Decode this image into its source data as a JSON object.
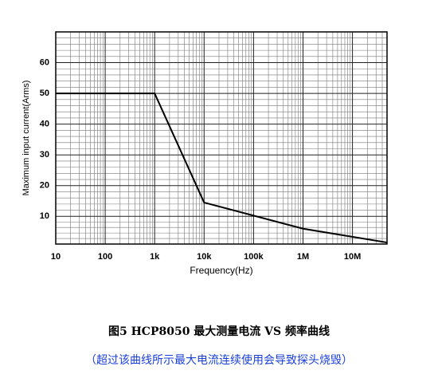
{
  "chart_data": {
    "type": "line",
    "title": "图5 HCP8050 最大测量电流 VS 频率曲线",
    "subtitle": "（超过该曲线所示最大电流连续使用会导致探头烧毁）",
    "x_label": "Frequency(Hz)",
    "y_label": "Maximum input current(Arms)",
    "x_scale": "log",
    "grid": true,
    "xlim": [
      10,
      50000000
    ],
    "ylim": [
      1,
      70
    ],
    "xticks": [
      10,
      100,
      {
        "value": 1000,
        "label": "1k"
      },
      {
        "value": 10000,
        "label": "10k"
      },
      {
        "value": 100000,
        "label": "100k"
      },
      {
        "value": 1000000,
        "label": "1M"
      },
      {
        "value": 10000000,
        "label": "10M"
      }
    ],
    "yticks": [
      10,
      20,
      30,
      40,
      50,
      60
    ],
    "series": [
      {
        "color": "#000000",
        "x": [
          10,
          1000,
          10000,
          1000000,
          50000000
        ],
        "values": [
          50,
          50,
          14.5,
          6,
          1.5
        ]
      }
    ]
  }
}
